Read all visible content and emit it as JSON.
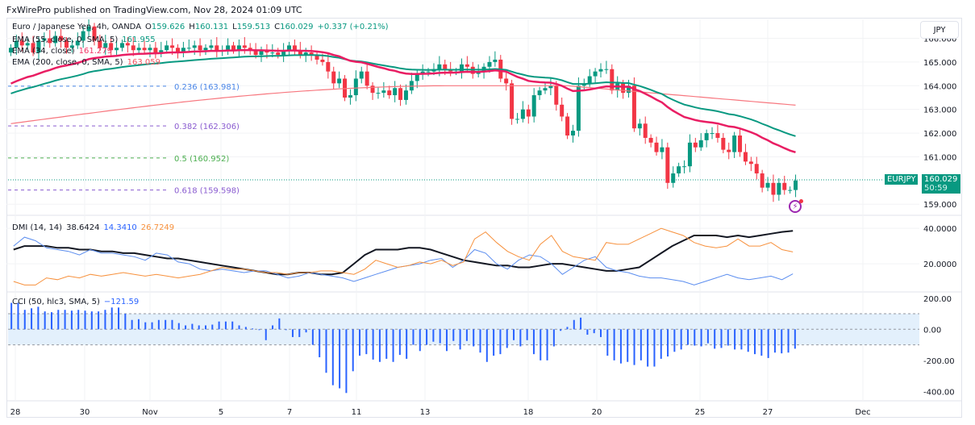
{
  "header": {
    "publish_line": "FxWirePro published on TradingView.com, Nov 28, 2024 01:09 UTC"
  },
  "main_pane": {
    "symbol_title": "Euro / Japanese Yen, 4h, OANDA",
    "ohlc": {
      "o_label": "O",
      "o": "159.626",
      "h_label": "H",
      "h": "160.131",
      "l_label": "L",
      "l": "159.513",
      "c_label": "C",
      "c": "160.029",
      "change": "+0.337 (+0.21%)"
    },
    "indicators": [
      {
        "label": "EMA (55, close, 0, SMA, 5)",
        "value": "161.955",
        "color": "#089981"
      },
      {
        "label": "EMA (34, close)",
        "value": "161.279",
        "color": "#f23668"
      },
      {
        "label": "EMA (200, close, 0, SMA, 5)",
        "value": "163.059",
        "color": "#f7525f"
      }
    ],
    "currency_button": "JPY",
    "price_label": {
      "symbol": "EURJPY",
      "price": "160.029",
      "countdown": "50:59"
    }
  },
  "colors": {
    "up": "#089981",
    "down": "#f23645",
    "ema34": "#e91e63",
    "ema55": "#089981",
    "ema200": "#f7777f",
    "adx": "#131722",
    "di_plus": "#5b8def",
    "di_minus": "#f7913d",
    "cci": "#2962ff",
    "cci_band": "#e3f0fc"
  },
  "dmi_pane": {
    "label": "DMI (14, 14)",
    "adx": "38.6424",
    "di_plus": "14.3410",
    "di_minus": "26.7249"
  },
  "cci_pane": {
    "label": "CCI (50, hlc3, SMA, 5)",
    "value": "−121.59"
  },
  "chart_data": [
    {
      "type": "candlestick",
      "title": "Euro / Japanese Yen, 4h, OANDA",
      "y_axis": {
        "ticks": [
          "166.000",
          "165.000",
          "164.000",
          "163.000",
          "162.000",
          "161.000",
          "159.000"
        ],
        "range": [
          158.6,
          166.8
        ]
      },
      "x_ticks": [
        "28",
        "30",
        "Nov",
        "5",
        "7",
        "11",
        "13",
        "18",
        "20",
        "25",
        "27",
        "Dec"
      ],
      "last_price": 160.029,
      "fibonacci": [
        {
          "level": "0.236",
          "price": 163.981,
          "label": "0.236 (163.981)",
          "color": "#4a86e8"
        },
        {
          "level": "0.382",
          "price": 162.306,
          "label": "0.382 (162.306)",
          "color": "#8a5cd0"
        },
        {
          "level": "0.5",
          "price": 160.952,
          "label": "0.5 (160.952)",
          "color": "#4caf50"
        },
        {
          "level": "0.618",
          "price": 159.598,
          "label": "0.618 (159.598)",
          "color": "#8a5cd0"
        }
      ],
      "closes": [
        165.6,
        165.9,
        165.7,
        165.8,
        165.4,
        165.9,
        166.0,
        165.8,
        166.1,
        165.9,
        165.6,
        165.7,
        165.9,
        166.3,
        166.5,
        165.9,
        165.6,
        165.8,
        165.5,
        165.6,
        165.8,
        165.7,
        165.5,
        165.6,
        165.5,
        165.6,
        165.4,
        165.5,
        165.7,
        165.6,
        165.4,
        165.6,
        165.6,
        165.7,
        165.5,
        165.6,
        165.7,
        165.5,
        165.5,
        165.7,
        165.5,
        165.7,
        165.6,
        165.5,
        165.3,
        165.5,
        165.4,
        165.4,
        165.3,
        165.5,
        165.7,
        165.5,
        165.3,
        165.4,
        165.3,
        165.1,
        165.0,
        164.6,
        164.1,
        164.3,
        163.5,
        163.6,
        164.3,
        164.6,
        164.0,
        163.7,
        163.7,
        163.8,
        163.6,
        163.9,
        163.4,
        163.8,
        164.2,
        164.5,
        164.6,
        164.6,
        164.7,
        164.9,
        164.7,
        164.6,
        164.6,
        164.9,
        164.8,
        164.5,
        164.6,
        164.8,
        165.0,
        165.1,
        164.3,
        164.1,
        162.6,
        162.6,
        163.0,
        162.7,
        163.6,
        163.8,
        163.9,
        164.0,
        163.2,
        162.7,
        161.9,
        162.1,
        164.0,
        164.1,
        164.4,
        164.6,
        164.7,
        164.7,
        163.8,
        164.1,
        163.7,
        164.0,
        162.2,
        162.4,
        161.8,
        161.6,
        161.2,
        161.4,
        159.9,
        160.3,
        160.6,
        160.6,
        161.6,
        161.4,
        161.7,
        162.0,
        162.0,
        161.8,
        161.3,
        161.2,
        161.9,
        161.2,
        160.8,
        160.7,
        160.3,
        159.7,
        159.9,
        159.4,
        159.9,
        159.6,
        159.6,
        160.0
      ],
      "ema34_end": 161.279,
      "ema55_end": 161.955,
      "ema200_end": 163.059
    },
    {
      "type": "line",
      "title": "DMI (14, 14)",
      "y_axis": {
        "ticks": [
          "40.0000",
          "20.0000"
        ],
        "range": [
          5,
          46
        ]
      },
      "series": [
        {
          "name": "ADX",
          "last": 38.6424,
          "values": [
            28,
            30,
            30,
            30,
            29,
            29,
            28,
            28,
            27,
            27,
            26,
            26,
            25,
            24,
            23,
            23,
            22,
            21,
            20,
            19,
            18,
            17,
            16,
            15,
            14,
            14,
            15,
            15,
            14,
            14,
            15,
            20,
            25,
            28,
            28,
            28,
            29,
            29,
            28,
            26,
            24,
            22,
            21,
            20,
            19,
            19,
            18,
            18,
            19,
            20,
            20,
            19,
            18,
            17,
            16,
            16,
            17,
            18,
            22,
            26,
            30,
            33,
            36,
            36,
            36,
            35,
            36,
            35,
            36,
            37,
            38,
            38.6
          ]
        },
        {
          "name": "+DI",
          "last": 14.341,
          "values": [
            30,
            35,
            33,
            29,
            28,
            27,
            25,
            28,
            26,
            26,
            25,
            24,
            22,
            26,
            25,
            21,
            20,
            17,
            16,
            17,
            16,
            15,
            16,
            16,
            14,
            12,
            13,
            15,
            14,
            13,
            12,
            10,
            12,
            14,
            16,
            18,
            19,
            20,
            22,
            23,
            18,
            22,
            28,
            26,
            20,
            17,
            22,
            25,
            24,
            20,
            14,
            18,
            22,
            24,
            18,
            16,
            15,
            13,
            12,
            12,
            11,
            10,
            8,
            10,
            12,
            14,
            12,
            11,
            12,
            13,
            11,
            14.3
          ]
        },
        {
          "name": "−DI",
          "last": 26.7249,
          "values": [
            10,
            8,
            8,
            12,
            11,
            13,
            12,
            14,
            13,
            14,
            15,
            14,
            13,
            14,
            13,
            12,
            13,
            14,
            16,
            18,
            17,
            17,
            16,
            15,
            15,
            14,
            15,
            15,
            16,
            16,
            15,
            14,
            17,
            22,
            20,
            18,
            19,
            21,
            20,
            22,
            19,
            21,
            34,
            38,
            32,
            27,
            24,
            22,
            31,
            36,
            27,
            24,
            23,
            22,
            32,
            31,
            31,
            34,
            37,
            40,
            38,
            36,
            32,
            30,
            29,
            30,
            34,
            30,
            30,
            32,
            28,
            26.7
          ]
        }
      ]
    },
    {
      "type": "bar",
      "title": "CCI (50, hlc3, SMA, 5)",
      "y_axis": {
        "ticks": [
          "200.00",
          "0.00",
          "-200.00",
          "-400.00"
        ],
        "range": [
          -450,
          230
        ]
      },
      "bands": [
        100,
        -100
      ],
      "last": -121.59,
      "values": [
        170,
        170,
        125,
        135,
        145,
        115,
        110,
        125,
        125,
        120,
        125,
        120,
        115,
        115,
        125,
        140,
        140,
        100,
        60,
        65,
        45,
        45,
        60,
        60,
        60,
        40,
        25,
        35,
        25,
        25,
        30,
        50,
        50,
        50,
        25,
        15,
        5,
        -5,
        -70,
        25,
        70,
        -5,
        -50,
        -50,
        -20,
        -100,
        -180,
        -280,
        -360,
        -380,
        -410,
        -270,
        -170,
        -160,
        -195,
        -210,
        -190,
        -210,
        -165,
        -190,
        -100,
        -140,
        -100,
        -80,
        -90,
        -140,
        -75,
        -130,
        -75,
        -110,
        -150,
        -210,
        -170,
        -160,
        -120,
        -70,
        -110,
        -70,
        -160,
        -200,
        -200,
        -110,
        -10,
        15,
        60,
        75,
        -35,
        -25,
        -50,
        -170,
        -200,
        -220,
        -210,
        -230,
        -200,
        -240,
        -240,
        -190,
        -175,
        -145,
        -130,
        -100,
        -105,
        -110,
        -90,
        -125,
        -120,
        -105,
        -130,
        -130,
        -145,
        -160,
        -170,
        -185,
        -150,
        -155,
        -150,
        -125
      ]
    }
  ]
}
